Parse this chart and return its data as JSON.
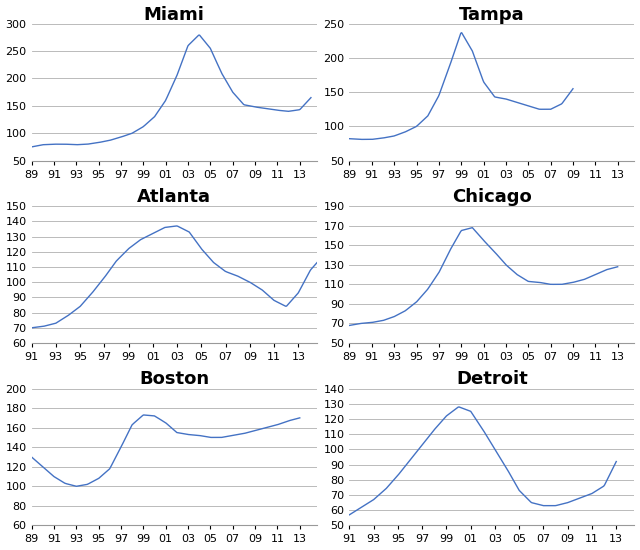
{
  "cities": [
    "Miami",
    "Tampa",
    "Atlanta",
    "Chicago",
    "Boston",
    "Detroit"
  ],
  "line_color": "#4472c4",
  "background_color": "#ffffff",
  "grid_color": "#b0b0b0",
  "title_fontsize": 13,
  "tick_fontsize": 8,
  "Miami": {
    "xlim": [
      1989,
      2014.5
    ],
    "ylim": [
      50,
      300
    ],
    "yticks": [
      50,
      100,
      150,
      200,
      250,
      300
    ],
    "xtick_years": [
      1989,
      1991,
      1993,
      1995,
      1997,
      1999,
      2001,
      2003,
      2005,
      2007,
      2009,
      2011,
      2013
    ],
    "xtick_labels": [
      "89",
      "91",
      "93",
      "95",
      "97",
      "99",
      "01",
      "03",
      "05",
      "07",
      "09",
      "11",
      "13"
    ],
    "year_start": 1989,
    "year_values": [
      75,
      79,
      80,
      80,
      79,
      80,
      83,
      87,
      93,
      100,
      112,
      130,
      160,
      205,
      260,
      280,
      255,
      210,
      175,
      152,
      148,
      145,
      142,
      140,
      143,
      165
    ]
  },
  "Tampa": {
    "xlim": [
      1989,
      2014.5
    ],
    "ylim": [
      50,
      250
    ],
    "yticks": [
      50,
      100,
      150,
      200,
      250
    ],
    "xtick_years": [
      1989,
      1991,
      1993,
      1995,
      1997,
      1999,
      2001,
      2003,
      2005,
      2007,
      2009,
      2011,
      2013
    ],
    "xtick_labels": [
      "89",
      "91",
      "93",
      "95",
      "97",
      "99",
      "01",
      "03",
      "05",
      "07",
      "09",
      "11",
      "13"
    ],
    "year_start": 1989,
    "year_values": [
      82,
      81,
      81,
      83,
      86,
      92,
      100,
      115,
      145,
      190,
      238,
      210,
      165,
      143,
      140,
      135,
      130,
      125,
      125,
      133,
      155
    ]
  },
  "Atlanta": {
    "xlim": [
      1991,
      2014.5
    ],
    "ylim": [
      60,
      150
    ],
    "yticks": [
      60,
      70,
      80,
      90,
      100,
      110,
      120,
      130,
      140,
      150
    ],
    "xtick_years": [
      1991,
      1993,
      1995,
      1997,
      1999,
      2001,
      2003,
      2005,
      2007,
      2009,
      2011,
      2013
    ],
    "xtick_labels": [
      "91",
      "93",
      "95",
      "97",
      "99",
      "01",
      "03",
      "05",
      "07",
      "09",
      "11",
      "13"
    ],
    "year_start": 1991,
    "year_values": [
      70,
      71,
      73,
      78,
      84,
      93,
      103,
      114,
      122,
      128,
      132,
      136,
      137,
      133,
      122,
      113,
      107,
      104,
      100,
      95,
      88,
      84,
      93,
      108,
      117
    ]
  },
  "Chicago": {
    "xlim": [
      1989,
      2014.5
    ],
    "ylim": [
      50,
      190
    ],
    "yticks": [
      50,
      70,
      90,
      110,
      130,
      150,
      170,
      190
    ],
    "xtick_years": [
      1989,
      1991,
      1993,
      1995,
      1997,
      1999,
      2001,
      2003,
      2005,
      2007,
      2009,
      2011,
      2013
    ],
    "xtick_labels": [
      "89",
      "91",
      "93",
      "95",
      "97",
      "99",
      "01",
      "03",
      "05",
      "07",
      "09",
      "11",
      "13"
    ],
    "year_start": 1989,
    "year_values": [
      68,
      70,
      71,
      73,
      77,
      83,
      92,
      105,
      122,
      145,
      165,
      168,
      155,
      143,
      130,
      120,
      113,
      112,
      110,
      110,
      112,
      115,
      120,
      125,
      128
    ]
  },
  "Boston": {
    "xlim": [
      1989,
      2014.5
    ],
    "ylim": [
      60,
      200
    ],
    "yticks": [
      60,
      80,
      100,
      120,
      140,
      160,
      180,
      200
    ],
    "xtick_years": [
      1989,
      1991,
      1993,
      1995,
      1997,
      1999,
      2001,
      2003,
      2005,
      2007,
      2009,
      2011,
      2013
    ],
    "xtick_labels": [
      "89",
      "91",
      "93",
      "95",
      "97",
      "99",
      "01",
      "03",
      "05",
      "07",
      "09",
      "11",
      "13"
    ],
    "year_start": 1989,
    "year_values": [
      130,
      120,
      110,
      103,
      100,
      102,
      108,
      118,
      140,
      163,
      173,
      172,
      165,
      155,
      153,
      152,
      150,
      150,
      152,
      154,
      157,
      160,
      163,
      167,
      170
    ]
  },
  "Detroit": {
    "xlim": [
      1991,
      2014.5
    ],
    "ylim": [
      50,
      140
    ],
    "yticks": [
      50,
      60,
      70,
      80,
      90,
      100,
      110,
      120,
      130,
      140
    ],
    "xtick_years": [
      1991,
      1993,
      1995,
      1997,
      1999,
      2001,
      2003,
      2005,
      2007,
      2009,
      2011,
      2013
    ],
    "xtick_labels": [
      "91",
      "93",
      "95",
      "97",
      "99",
      "01",
      "03",
      "05",
      "07",
      "09",
      "11",
      "13"
    ],
    "year_start": 1991,
    "year_values": [
      57,
      62,
      67,
      74,
      83,
      93,
      103,
      113,
      122,
      128,
      125,
      113,
      100,
      87,
      73,
      65,
      63,
      63,
      65,
      68,
      71,
      76,
      92
    ]
  }
}
